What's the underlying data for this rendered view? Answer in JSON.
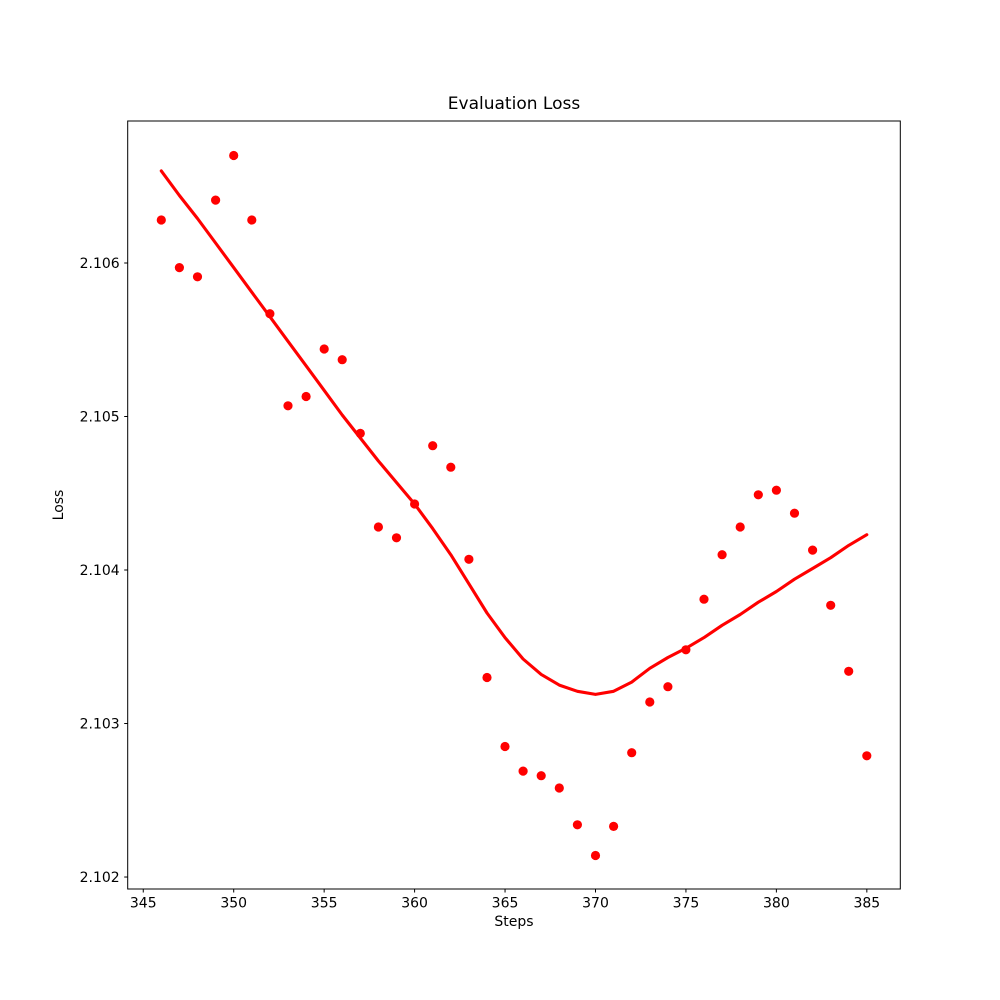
{
  "figure": {
    "title": "Evaluation Loss",
    "xlabel": "Steps",
    "ylabel": "Loss"
  },
  "chart_data": {
    "type": "scatter",
    "title": "Evaluation Loss",
    "xlabel": "Steps",
    "ylabel": "Loss",
    "xlim": [
      344.14,
      386.85
    ],
    "ylim": [
      2.101922,
      2.106925
    ],
    "x_ticks": [
      345,
      350,
      355,
      360,
      365,
      370,
      375,
      380,
      385
    ],
    "y_ticks": [
      2.102,
      2.103,
      2.104,
      2.105,
      2.106
    ],
    "y_tick_labels": [
      "2.102",
      "2.103",
      "2.104",
      "2.105",
      "2.106"
    ],
    "grid": false,
    "legend": null,
    "marker_color": "#ff0000",
    "line_color": "#ff0000",
    "background_color": "#ffffff",
    "spine_color": "#000000",
    "series": [
      {
        "name": "evaluation-loss-points",
        "type": "scatter",
        "x": [
          346,
          347,
          348,
          349,
          350,
          351,
          352,
          353,
          354,
          355,
          356,
          357,
          358,
          359,
          360,
          361,
          362,
          363,
          364,
          365,
          366,
          367,
          368,
          369,
          370,
          371,
          372,
          373,
          374,
          375,
          376,
          377,
          378,
          379,
          380,
          381,
          382,
          383,
          384,
          385
        ],
        "y": [
          2.10628,
          2.10597,
          2.10591,
          2.10641,
          2.1067,
          2.10628,
          2.10567,
          2.10507,
          2.10513,
          2.10544,
          2.10537,
          2.10489,
          2.10428,
          2.10421,
          2.10443,
          2.10481,
          2.10467,
          2.10407,
          2.1033,
          2.10285,
          2.10269,
          2.10266,
          2.10258,
          2.10234,
          2.10214,
          2.10233,
          2.10281,
          2.10314,
          2.10324,
          2.10348,
          2.10381,
          2.1041,
          2.10428,
          2.10449,
          2.10452,
          2.10437,
          2.10413,
          2.10377,
          2.10334,
          2.10279
        ]
      },
      {
        "name": "smoothed-trend-line",
        "type": "line",
        "x": [
          346,
          347,
          348,
          349,
          350,
          351,
          352,
          353,
          354,
          355,
          356,
          357,
          358,
          359,
          360,
          361,
          362,
          363,
          364,
          365,
          366,
          367,
          368,
          369,
          370,
          371,
          372,
          373,
          374,
          375,
          376,
          377,
          378,
          379,
          380,
          381,
          382,
          383,
          384,
          385
        ],
        "y": [
          2.1066,
          2.10644,
          2.10629,
          2.10613,
          2.10597,
          2.10581,
          2.10565,
          2.10549,
          2.10533,
          2.10517,
          2.10501,
          2.10486,
          2.10471,
          2.10457,
          2.10443,
          2.10427,
          2.1041,
          2.10391,
          2.10372,
          2.10356,
          2.10342,
          2.10332,
          2.10325,
          2.10321,
          2.10319,
          2.10321,
          2.10327,
          2.10336,
          2.10343,
          2.10349,
          2.10356,
          2.10364,
          2.10371,
          2.10379,
          2.10386,
          2.10394,
          2.10401,
          2.10408,
          2.10416,
          2.10423
        ]
      }
    ]
  }
}
